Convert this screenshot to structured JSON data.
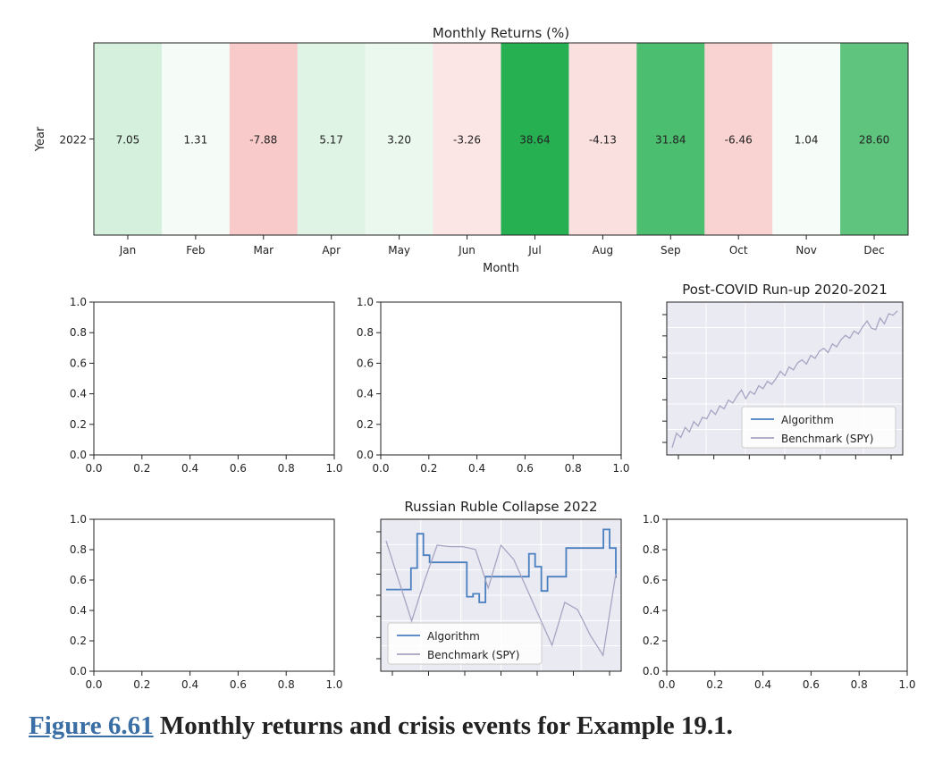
{
  "caption": {
    "figure_link": "Figure 6.61",
    "text": "Monthly returns and crisis events for Example 19.1."
  },
  "chart_data": [
    {
      "type": "heatmap",
      "title": "Monthly Returns (%)",
      "xlabel": "Month",
      "ylabel": "Year",
      "x": [
        "Jan",
        "Feb",
        "Mar",
        "Apr",
        "May",
        "Jun",
        "Jul",
        "Aug",
        "Sep",
        "Oct",
        "Nov",
        "Dec"
      ],
      "y": [
        "2022"
      ],
      "values": [
        [
          7.05,
          1.31,
          -7.88,
          5.17,
          3.2,
          -3.26,
          38.64,
          -4.13,
          31.84,
          -6.46,
          1.04,
          28.6
        ]
      ],
      "labels": [
        "7.05",
        "1.31",
        "-7.88",
        "5.17",
        "3.20",
        "-3.26",
        "38.64",
        "-4.13",
        "31.84",
        "-6.46",
        "1.04",
        "28.60"
      ],
      "colormap": "red-white-green diverging",
      "colors": {
        "positive": "#1aaa4f",
        "negative": "#f4a6a6",
        "neutral": "#ffffff"
      }
    },
    {
      "type": "line",
      "title": "",
      "xlim": [
        0,
        1
      ],
      "ylim": [
        0,
        1
      ],
      "xticks": [
        "0.0",
        "0.2",
        "0.4",
        "0.6",
        "0.8",
        "1.0"
      ],
      "yticks": [
        "0.0",
        "0.2",
        "0.4",
        "0.6",
        "0.8",
        "1.0"
      ],
      "series": []
    },
    {
      "type": "line",
      "title": "",
      "xlim": [
        0,
        1
      ],
      "ylim": [
        0,
        1
      ],
      "xticks": [
        "0.0",
        "0.2",
        "0.4",
        "0.6",
        "0.8",
        "1.0"
      ],
      "yticks": [
        "0.0",
        "0.2",
        "0.4",
        "0.6",
        "0.8",
        "1.0"
      ],
      "series": []
    },
    {
      "type": "line",
      "title": "Post-COVID Run-up 2020-2021",
      "style": "seaborn darkgrid, no tick labels",
      "legend_position": "lower-right",
      "series": [
        {
          "name": "Algorithm",
          "color": "#4a7fc0",
          "values": []
        },
        {
          "name": "Benchmark (SPY)",
          "color": "#a7a4c2",
          "values": [
            0.02,
            0.12,
            0.09,
            0.16,
            0.13,
            0.2,
            0.17,
            0.23,
            0.22,
            0.28,
            0.25,
            0.31,
            0.29,
            0.35,
            0.33,
            0.38,
            0.42,
            0.36,
            0.41,
            0.39,
            0.45,
            0.43,
            0.48,
            0.46,
            0.5,
            0.55,
            0.52,
            0.58,
            0.56,
            0.61,
            0.63,
            0.6,
            0.66,
            0.64,
            0.69,
            0.71,
            0.68,
            0.74,
            0.72,
            0.77,
            0.8,
            0.78,
            0.83,
            0.81,
            0.86,
            0.9,
            0.85,
            0.84,
            0.92,
            0.88,
            0.95,
            0.94,
            0.97
          ]
        }
      ]
    },
    {
      "type": "line",
      "title": "",
      "xlim": [
        0,
        1
      ],
      "ylim": [
        0,
        1
      ],
      "xticks": [
        "0.0",
        "0.2",
        "0.4",
        "0.6",
        "0.8",
        "1.0"
      ],
      "yticks": [
        "0.0",
        "0.2",
        "0.4",
        "0.6",
        "0.8",
        "1.0"
      ],
      "series": []
    },
    {
      "type": "line",
      "title": "Russian Ruble Collapse 2022",
      "style": "seaborn darkgrid, no tick labels",
      "legend_position": "lower-left",
      "series": [
        {
          "name": "Algorithm",
          "color": "#4a7fc0",
          "step": true,
          "values": [
            0.54,
            0.54,
            0.54,
            0.54,
            0.69,
            0.93,
            0.78,
            0.73,
            0.73,
            0.73,
            0.73,
            0.73,
            0.73,
            0.49,
            0.51,
            0.45,
            0.63,
            0.63,
            0.63,
            0.63,
            0.63,
            0.63,
            0.63,
            0.79,
            0.7,
            0.53,
            0.63,
            0.63,
            0.63,
            0.83,
            0.83,
            0.83,
            0.83,
            0.83,
            0.83,
            0.96,
            0.83,
            0.62
          ]
        },
        {
          "name": "Benchmark (SPY)",
          "color": "#a7a4c2",
          "values": [
            0.88,
            0.6,
            0.32,
            0.6,
            0.85,
            0.84,
            0.84,
            0.82,
            0.55,
            0.85,
            0.75,
            0.55,
            0.35,
            0.15,
            0.45,
            0.4,
            0.22,
            0.08,
            0.65
          ]
        }
      ]
    },
    {
      "type": "line",
      "title": "",
      "xlim": [
        0,
        1
      ],
      "ylim": [
        0,
        1
      ],
      "xticks": [
        "0.0",
        "0.2",
        "0.4",
        "0.6",
        "0.8",
        "1.0"
      ],
      "yticks": [
        "0.0",
        "0.2",
        "0.4",
        "0.6",
        "0.8",
        "1.0"
      ],
      "series": []
    }
  ]
}
